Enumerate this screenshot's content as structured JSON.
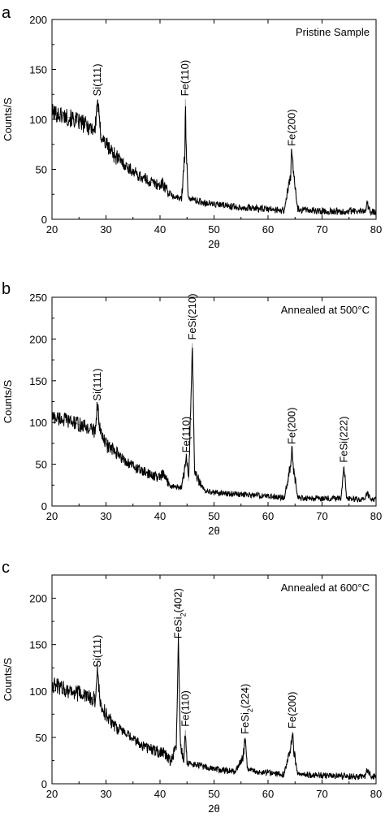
{
  "chart_data": [
    {
      "panel_letter": "a",
      "type": "line",
      "title": "Pristine Sample",
      "xlabel": "2θ",
      "ylabel": "Counts/S",
      "xlim": [
        20,
        80
      ],
      "ylim": [
        0,
        200
      ],
      "xticks": [
        20,
        30,
        40,
        50,
        60,
        70,
        80
      ],
      "yticks": [
        0,
        50,
        100,
        150,
        200
      ],
      "grid": false,
      "series": [
        {
          "x": [
            20,
            22,
            24,
            26,
            28,
            28.4,
            29,
            30,
            32,
            34,
            36,
            38,
            40,
            40.5,
            42,
            44,
            44.6,
            44.7,
            44.8,
            45.2,
            47,
            50,
            55,
            60,
            63,
            64.2,
            64.4,
            64.7,
            65.5,
            70,
            75,
            78,
            78.3,
            79,
            80
          ],
          "y": [
            107,
            104,
            100,
            95,
            90,
            120,
            86,
            75,
            62,
            52,
            44,
            38,
            34,
            36,
            24,
            20,
            70,
            120,
            80,
            22,
            18,
            15,
            12,
            10,
            9,
            45,
            70,
            45,
            10,
            8,
            8,
            8,
            16,
            8,
            7
          ]
        }
      ],
      "peak_labels": [
        {
          "text": "Si(111)",
          "x": 28.4,
          "y": 120
        },
        {
          "text": "Fe(110)",
          "x": 44.7,
          "y": 120
        },
        {
          "text": "Fe(200)",
          "x": 64.4,
          "y": 70
        }
      ]
    },
    {
      "panel_letter": "b",
      "type": "line",
      "title": "Annealed at 500°C",
      "xlabel": "2θ",
      "ylabel": "Counts/S",
      "xlim": [
        20,
        80
      ],
      "ylim": [
        0,
        250
      ],
      "xticks": [
        20,
        30,
        40,
        50,
        60,
        70,
        80
      ],
      "yticks": [
        0,
        50,
        100,
        150,
        200,
        250
      ],
      "grid": false,
      "series": [
        {
          "x": [
            20,
            22,
            24,
            26,
            28,
            28.4,
            29,
            30,
            32,
            34,
            36,
            38,
            40,
            40.5,
            42,
            44,
            44.6,
            44.9,
            45.3,
            45.7,
            46.0,
            46.4,
            48,
            50,
            55,
            60,
            63,
            64.2,
            64.4,
            64.7,
            65.5,
            70,
            73.5,
            74.1,
            74.5,
            76,
            78,
            78.3,
            79,
            80
          ],
          "y": [
            107,
            104,
            100,
            95,
            90,
            122,
            86,
            74,
            62,
            52,
            44,
            38,
            34,
            38,
            24,
            22,
            45,
            60,
            30,
            120,
            195,
            40,
            20,
            16,
            14,
            12,
            10,
            50,
            70,
            45,
            10,
            9,
            10,
            48,
            10,
            8,
            8,
            16,
            8,
            7
          ]
        }
      ],
      "peak_labels": [
        {
          "text": "Si(111)",
          "x": 28.4,
          "y": 122
        },
        {
          "text": "Fe(110)",
          "x": 44.9,
          "y": 60
        },
        {
          "text": "FeSi(210)",
          "x": 46.0,
          "y": 195
        },
        {
          "text": "Fe(200)",
          "x": 64.4,
          "y": 70
        },
        {
          "text": "FeSi(222)",
          "x": 74.1,
          "y": 48
        }
      ]
    },
    {
      "panel_letter": "c",
      "type": "line",
      "title": "Annealed at 600°C",
      "xlabel": "2θ",
      "ylabel": "Counts/S",
      "xlim": [
        20,
        80
      ],
      "ylim": [
        0,
        225
      ],
      "xticks": [
        20,
        30,
        40,
        50,
        60,
        70,
        80
      ],
      "yticks": [
        0,
        50,
        100,
        150,
        200
      ],
      "grid": false,
      "series": [
        {
          "x": [
            20,
            22,
            24,
            26,
            28,
            28.4,
            29,
            30,
            32,
            34,
            36,
            38,
            40,
            40.5,
            42,
            43.0,
            43.4,
            43.8,
            44.4,
            44.7,
            45.0,
            47,
            50,
            54,
            55.4,
            55.8,
            56.2,
            58,
            60,
            63,
            64.2,
            64.5,
            64.8,
            65.5,
            70,
            75,
            78,
            78.3,
            79,
            80
          ],
          "y": [
            107,
            103,
            99,
            95,
            90,
            122,
            86,
            74,
            62,
            52,
            44,
            38,
            34,
            36,
            24,
            40,
            153,
            40,
            25,
            58,
            22,
            20,
            16,
            13,
            30,
            50,
            15,
            12,
            12,
            10,
            40,
            56,
            35,
            10,
            9,
            8,
            8,
            16,
            8,
            7
          ]
        }
      ],
      "peak_labels": [
        {
          "text": "Si(111)",
          "x": 28.4,
          "y": 122
        },
        {
          "text": "FeSi",
          "sub": "2",
          "suffix": "(402)",
          "x": 43.4,
          "y": 153
        },
        {
          "text": "Fe(110)",
          "x": 44.7,
          "y": 58
        },
        {
          "text": "FeSi",
          "sub": "2",
          "suffix": "(224)",
          "x": 55.8,
          "y": 50
        },
        {
          "text": "Fe(200)",
          "x": 64.5,
          "y": 56
        }
      ]
    }
  ]
}
